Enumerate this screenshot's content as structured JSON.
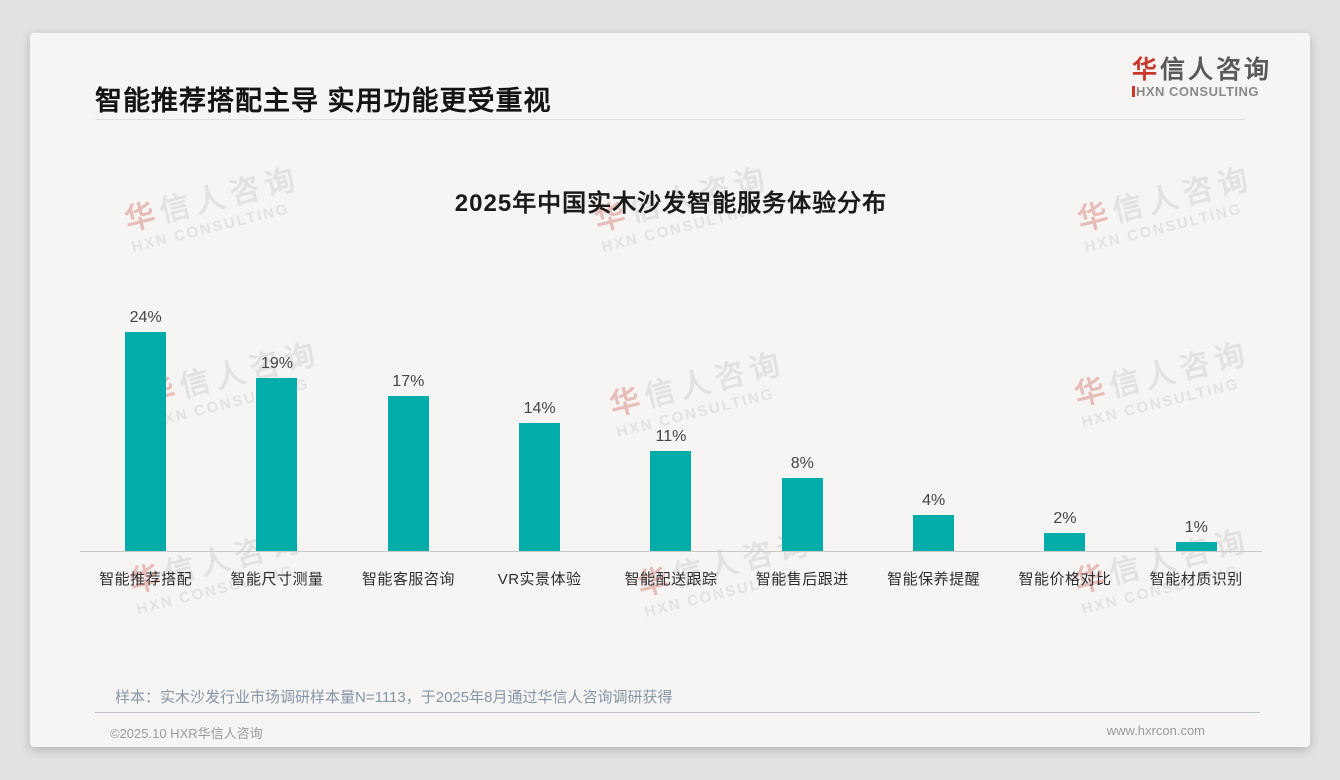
{
  "page": {
    "header": {
      "title": "智能推荐搭配主导 实用功能更受重视"
    },
    "logo": {
      "cn_first": "华",
      "cn_rest": "信人咨询",
      "en": "HXN CONSULTING"
    },
    "watermark": {
      "cn_first": "华",
      "cn_rest": "信人咨询",
      "en": "HXN CONSULTING"
    },
    "footnote": "样本：实木沙发行业市场调研样本量N=1113，于2025年8月通过华信人咨询调研获得",
    "footer": {
      "copyright": "©2025.10 HXR华信人咨询",
      "website": "www.hxrcon.com"
    }
  },
  "chart_data": {
    "type": "bar",
    "title": "2025年中国实木沙发智能服务体验分布",
    "categories": [
      "智能推荐搭配",
      "智能尺寸测量",
      "智能客服咨询",
      "VR实景体验",
      "智能配送跟踪",
      "智能售后跟进",
      "智能保养提醒",
      "智能价格对比",
      "智能材质识别"
    ],
    "values": [
      24,
      19,
      17,
      14,
      11,
      8,
      4,
      2,
      1
    ],
    "unit": "%",
    "data_labels": "top",
    "xlabel": "",
    "ylabel": "",
    "ylim": [
      0,
      25
    ],
    "grid": false,
    "legend": false,
    "bar_color": "#02ada9"
  },
  "colors": {
    "brand_red": "#c8382c",
    "bar_teal": "#02ada9",
    "note_blue_gray": "#8496a6"
  }
}
